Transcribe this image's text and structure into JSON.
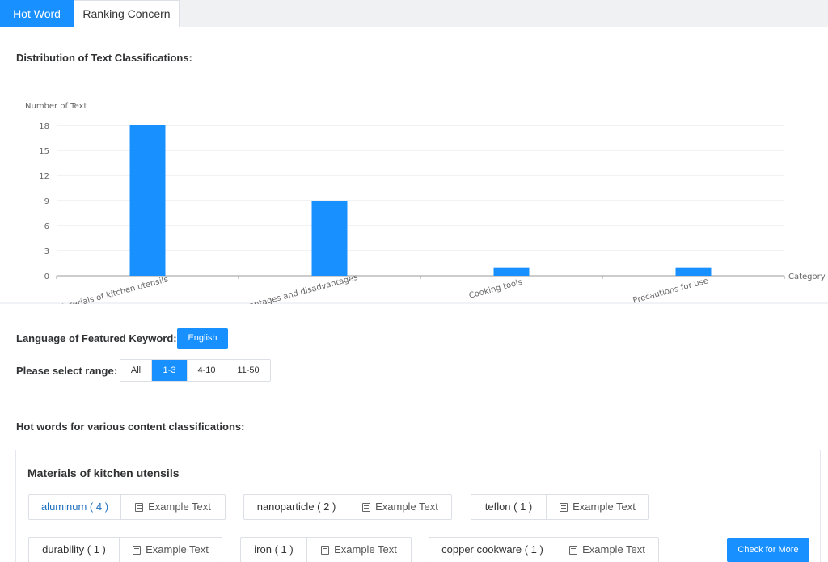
{
  "tabs": [
    {
      "label": "Hot Word",
      "active": true
    },
    {
      "label": "Ranking Concern",
      "active": false
    }
  ],
  "chart_section": {
    "title": "Distribution of Text Classifications:"
  },
  "chart_data": {
    "type": "bar",
    "categories": [
      "Materials of kitchen utensils",
      "Advantages and disadvantages",
      "Cooking tools",
      "Precautions for use"
    ],
    "values": [
      18,
      9,
      1,
      1
    ],
    "ylabel": "Number of Text",
    "xlabel": "Category",
    "ylim": [
      0,
      18
    ],
    "yticks": [
      "0",
      "3",
      "6",
      "9",
      "12",
      "15",
      "18"
    ],
    "grid": true,
    "bar_color": "#1890ff"
  },
  "keyword": {
    "language_label": "Language of Featured Keyword:",
    "language_value": "English",
    "range_label": "Please select range:",
    "ranges": [
      "All",
      "1-3",
      "4-10",
      "11-50"
    ],
    "selected_range": "1-3",
    "hot_words_label": "Hot words for various content classifications:"
  },
  "card": {
    "title": "Materials of kitchen utensils",
    "example_label": "Example Text",
    "check_more_label": "Check for More",
    "chips": [
      {
        "word": "aluminum ( 4 )"
      },
      {
        "word": "nanoparticle ( 2 )"
      },
      {
        "word": "teflon ( 1 )"
      },
      {
        "word": "durability ( 1 )"
      },
      {
        "word": "iron ( 1 )"
      },
      {
        "word": "copper cookware ( 1 )"
      }
    ]
  },
  "colors": {
    "accent": "#1890ff"
  }
}
